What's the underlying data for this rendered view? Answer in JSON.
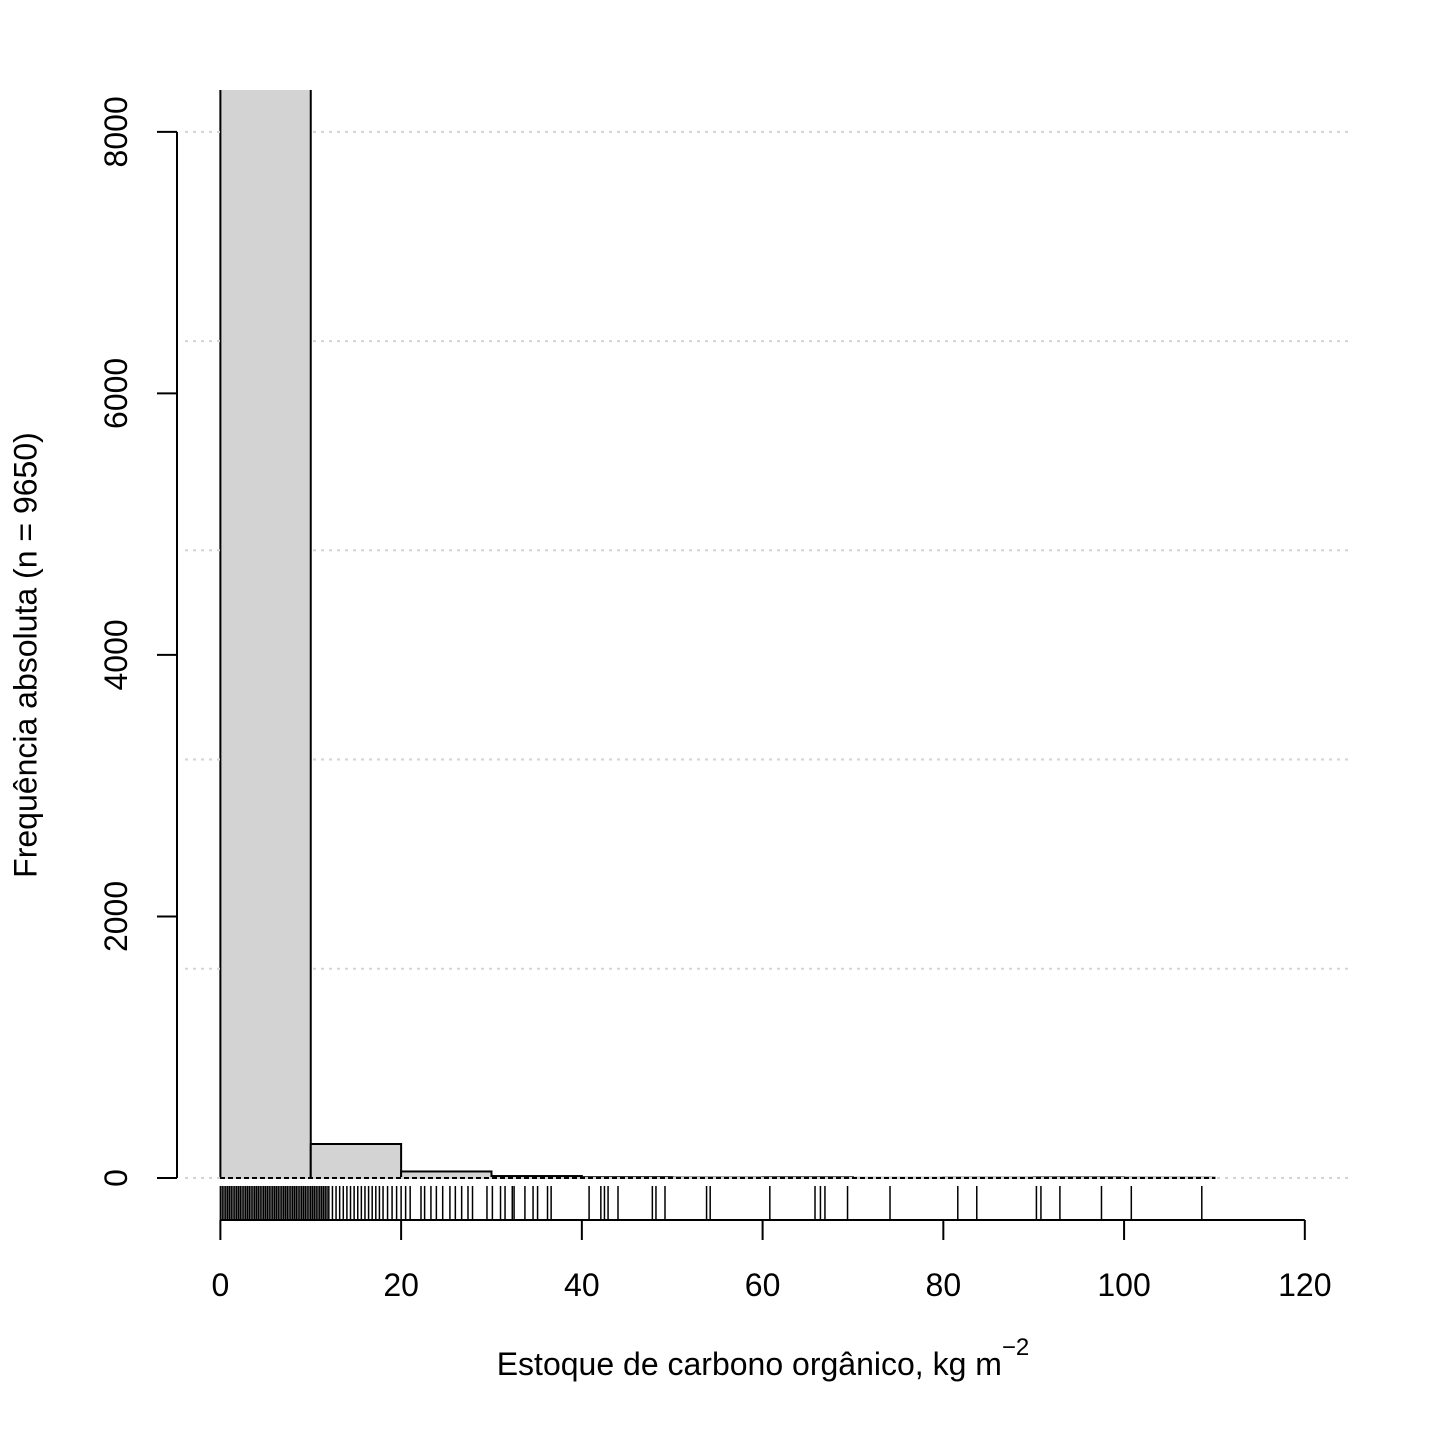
{
  "chart_data": {
    "type": "histogram",
    "xlabel": "Estoque de carbono orgânico, kg m",
    "xlabel_superscript": "−2",
    "ylabel": "Frequência absoluta (n = 9650)",
    "bins": [
      0,
      10,
      20,
      30,
      40,
      50,
      60,
      70,
      80,
      90,
      100,
      110
    ],
    "counts": [
      9302,
      260,
      50,
      15,
      6,
      3,
      5,
      1,
      2,
      4,
      2
    ],
    "color": "#d3d3d3",
    "xlim": [
      -4.8,
      125
    ],
    "xticks": [
      0,
      20,
      40,
      60,
      80,
      100,
      120
    ],
    "ylim": [
      0,
      8320
    ],
    "yticks": [
      0,
      2000,
      4000,
      6000,
      8000
    ],
    "ygrid": [
      0,
      1600,
      3200,
      4800,
      6400,
      8000
    ],
    "rug": [
      0,
      0.2,
      0.4,
      0.6,
      0.8,
      1,
      1.2,
      1.4,
      1.6,
      1.8,
      2,
      2.2,
      2.4,
      2.6,
      2.8,
      3,
      3.2,
      3.4,
      3.6,
      3.8,
      4,
      4.2,
      4.4,
      4.6,
      4.8,
      5,
      5.2,
      5.4,
      5.6,
      5.8,
      6,
      6.2,
      6.4,
      6.6,
      6.8,
      7,
      7.2,
      7.4,
      7.6,
      7.8,
      8,
      8.2,
      8.4,
      8.6,
      8.8,
      9,
      9.2,
      9.4,
      9.6,
      9.8,
      10,
      10.2,
      10.4,
      10.6,
      10.8,
      11,
      11.2,
      11.4,
      11.6,
      11.8,
      12,
      12.4,
      12.8,
      13.2,
      13.6,
      14,
      14.4,
      14.8,
      15.2,
      15.6,
      16,
      16.4,
      16.8,
      17.2,
      17.6,
      18,
      18.5,
      19,
      19.5,
      20,
      20.5,
      21,
      22.2,
      22.6,
      23.3,
      23.9,
      24.6,
      25.4,
      26.0,
      26.7,
      27.4,
      27.9,
      29.5,
      30.1,
      31.0,
      31.5,
      32.3,
      32.5,
      33.7,
      34.6,
      35.1,
      36.2,
      36.6,
      40.8,
      42.1,
      42.5,
      42.9,
      44.0,
      47.8,
      48.2,
      49.2,
      53.8,
      54.2,
      60.8,
      65.8,
      66.4,
      66.9,
      69.4,
      74.1,
      81.6,
      83.7,
      90.3,
      90.8,
      92.9,
      97.5,
      100.8,
      108.6
    ]
  }
}
